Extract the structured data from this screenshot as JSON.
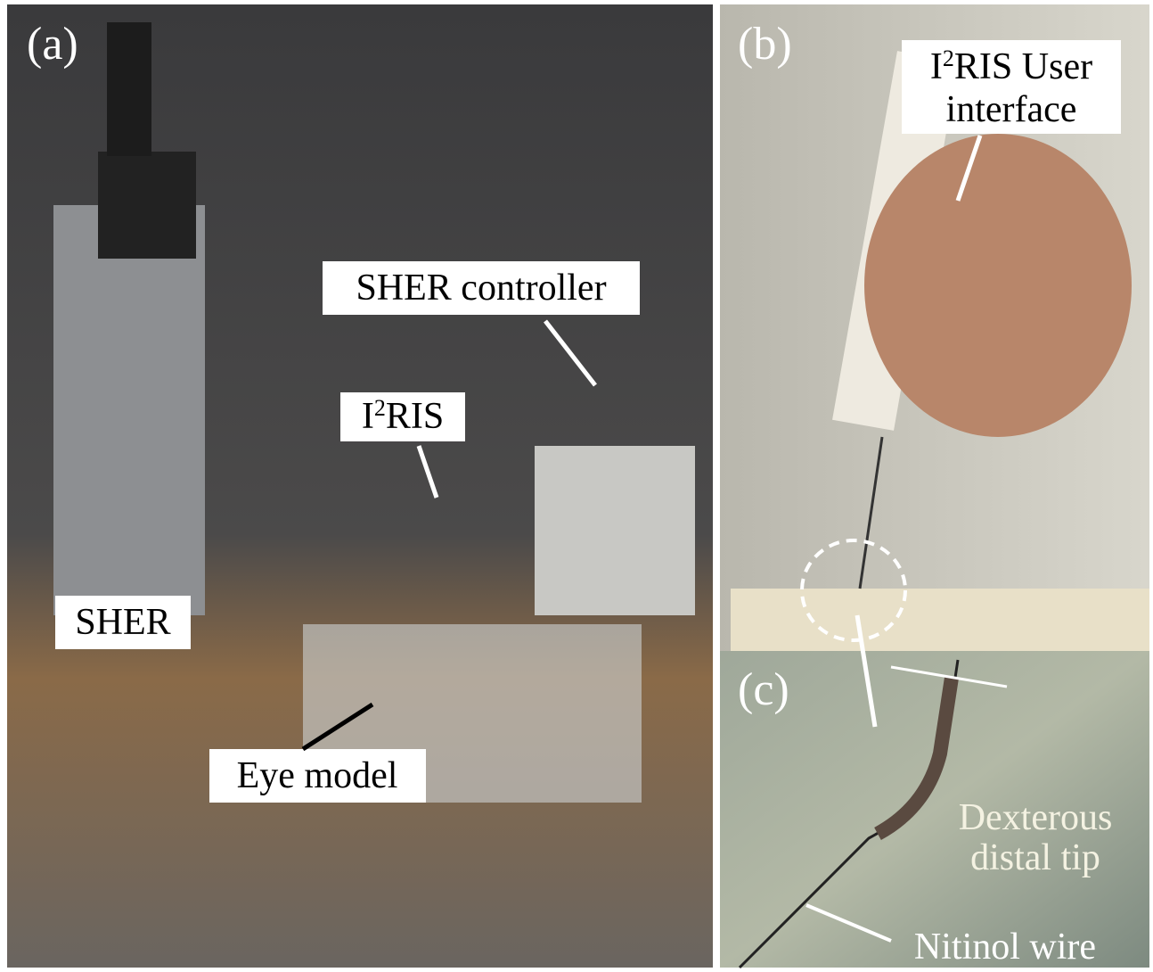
{
  "panels": {
    "a": "(a)",
    "b": "(b)",
    "c": "(c)"
  },
  "labels": {
    "sher_controller": "SHER controller",
    "i2ris": {
      "base": "I",
      "sup": "2",
      "rest": "RIS"
    },
    "sher": "SHER",
    "eye_model": "Eye model",
    "user_interface": {
      "base": "I",
      "sup": "2",
      "rest": "RIS User",
      "line2": "interface"
    },
    "distal_tip": {
      "line1": "Dexterous",
      "line2": "distal tip"
    },
    "nitinol_wire": "Nitinol wire"
  }
}
